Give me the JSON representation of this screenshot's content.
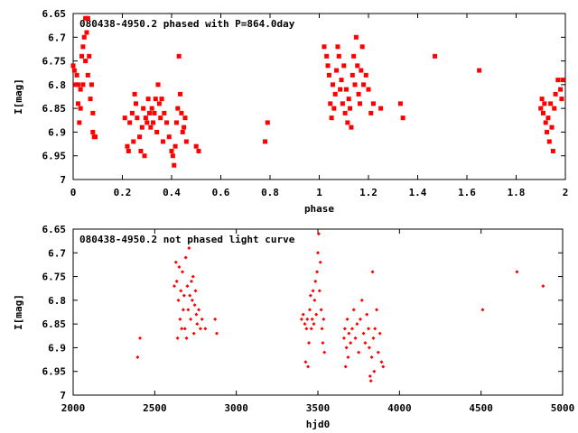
{
  "chart_data": [
    {
      "type": "scatter",
      "title": "080438-4950.2 phased with P=864.0day",
      "xlabel": "phase",
      "ylabel": "I[mag]",
      "xlim": [
        0,
        2
      ],
      "ylim": [
        7,
        6.65
      ],
      "y_inverted": true,
      "grid": false,
      "marker_color": "#ff0000",
      "x_ticks": [
        "0",
        "0.2",
        "0.4",
        "0.6",
        "0.8",
        "1",
        "1.2",
        "1.4",
        "1.6",
        "1.8",
        "2"
      ],
      "y_ticks": [
        "6.65",
        "6.7",
        "6.75",
        "6.8",
        "6.85",
        "6.9",
        "6.95",
        "7"
      ],
      "series": [
        {
          "x": [
            0.0,
            0.005,
            0.01,
            0.015,
            0.02,
            0.02,
            0.025,
            0.03,
            0.03,
            0.035,
            0.04,
            0.04,
            0.045,
            0.05,
            0.05,
            0.055,
            0.06,
            0.06,
            0.065,
            0.07,
            0.075,
            0.08,
            0.08,
            0.085,
            0.09,
            0.21,
            0.22,
            0.225,
            0.23,
            0.24,
            0.245,
            0.25,
            0.255,
            0.26,
            0.27,
            0.275,
            0.28,
            0.285,
            0.29,
            0.295,
            0.3,
            0.305,
            0.31,
            0.315,
            0.32,
            0.325,
            0.33,
            0.335,
            0.34,
            0.345,
            0.35,
            0.355,
            0.36,
            0.365,
            0.37,
            0.38,
            0.39,
            0.4,
            0.405,
            0.41,
            0.415,
            0.42,
            0.425,
            0.43,
            0.435,
            0.44,
            0.445,
            0.45,
            0.455,
            0.46,
            0.5,
            0.51,
            0.78,
            0.79,
            1.02,
            1.03,
            1.035,
            1.04,
            1.045,
            1.05,
            1.055,
            1.06,
            1.065,
            1.07,
            1.075,
            1.08,
            1.085,
            1.09,
            1.095,
            1.1,
            1.105,
            1.11,
            1.115,
            1.12,
            1.125,
            1.13,
            1.135,
            1.14,
            1.145,
            1.15,
            1.155,
            1.16,
            1.165,
            1.17,
            1.175,
            1.18,
            1.19,
            1.2,
            1.21,
            1.22,
            1.25,
            1.33,
            1.34,
            1.47,
            1.65,
            1.9,
            1.905,
            1.91,
            1.915,
            1.92,
            1.925,
            1.93,
            1.935,
            1.94,
            1.945,
            1.95,
            1.955,
            1.96,
            1.97,
            1.98,
            1.985,
            1.99
          ],
          "y": [
            6.76,
            6.77,
            6.8,
            6.78,
            6.84,
            6.8,
            6.88,
            6.85,
            6.81,
            6.74,
            6.8,
            6.72,
            6.7,
            6.66,
            6.75,
            6.69,
            6.66,
            6.78,
            6.74,
            6.83,
            6.8,
            6.9,
            6.86,
            6.91,
            6.91,
            6.87,
            6.93,
            6.94,
            6.88,
            6.86,
            6.92,
            6.82,
            6.84,
            6.87,
            6.91,
            6.94,
            6.89,
            6.85,
            6.95,
            6.87,
            6.88,
            6.83,
            6.86,
            6.89,
            6.85,
            6.88,
            6.86,
            6.83,
            6.9,
            6.8,
            6.84,
            6.87,
            6.83,
            6.92,
            6.86,
            6.88,
            6.91,
            6.94,
            6.95,
            6.97,
            6.93,
            6.88,
            6.85,
            6.74,
            6.82,
            6.86,
            6.9,
            6.89,
            6.87,
            6.92,
            6.93,
            6.94,
            6.92,
            6.88,
            6.72,
            6.74,
            6.76,
            6.78,
            6.84,
            6.87,
            6.8,
            6.85,
            6.82,
            6.77,
            6.72,
            6.74,
            6.81,
            6.79,
            6.84,
            6.76,
            6.86,
            6.81,
            6.88,
            6.83,
            6.85,
            6.89,
            6.78,
            6.74,
            6.8,
            6.7,
            6.76,
            6.82,
            6.84,
            6.77,
            6.72,
            6.8,
            6.78,
            6.81,
            6.86,
            6.84,
            6.85,
            6.84,
            6.87,
            6.74,
            6.77,
            6.85,
            6.83,
            6.86,
            6.84,
            6.88,
            6.9,
            6.87,
            6.92,
            6.84,
            6.89,
            6.94,
            6.85,
            6.82,
            6.79,
            6.81,
            6.83,
            6.79
          ]
        }
      ]
    },
    {
      "type": "scatter",
      "title": "080438-4950.2 not phased light curve",
      "xlabel": "hjd0",
      "ylabel": "I[mag]",
      "xlim": [
        2000,
        5000
      ],
      "ylim": [
        7,
        6.65
      ],
      "y_inverted": true,
      "grid": false,
      "marker_color": "#ff0000",
      "x_ticks": [
        "2000",
        "2500",
        "3000",
        "3500",
        "4000",
        "4500",
        "5000"
      ],
      "y_ticks": [
        "6.65",
        "6.7",
        "6.75",
        "6.8",
        "6.85",
        "6.9",
        "6.95",
        "7"
      ],
      "series": [
        {
          "x": [
            2395,
            2410,
            2620,
            2630,
            2635,
            2640,
            2645,
            2650,
            2655,
            2660,
            2665,
            2670,
            2675,
            2680,
            2685,
            2690,
            2695,
            2700,
            2705,
            2710,
            2715,
            2720,
            2725,
            2730,
            2735,
            2740,
            2745,
            2750,
            2755,
            2760,
            2770,
            2780,
            2790,
            2810,
            2870,
            2880,
            3400,
            3410,
            3420,
            3425,
            3430,
            3435,
            3440,
            3445,
            3450,
            3455,
            3460,
            3465,
            3470,
            3475,
            3480,
            3485,
            3490,
            3495,
            3500,
            3505,
            3510,
            3515,
            3520,
            3525,
            3530,
            3535,
            3540,
            3660,
            3665,
            3670,
            3675,
            3680,
            3685,
            3690,
            3700,
            3710,
            3720,
            3730,
            3740,
            3750,
            3760,
            3770,
            3780,
            3790,
            3800,
            3810,
            3815,
            3820,
            3825,
            3830,
            3835,
            3840,
            3845,
            3850,
            3860,
            3870,
            3880,
            3890,
            3900,
            4510,
            4720,
            4880
          ],
          "y": [
            6.92,
            6.88,
            6.77,
            6.72,
            6.76,
            6.88,
            6.8,
            6.73,
            6.84,
            6.78,
            6.86,
            6.74,
            6.82,
            6.79,
            6.86,
            6.71,
            6.88,
            6.77,
            6.82,
            6.69,
            6.79,
            6.84,
            6.76,
            6.8,
            6.75,
            6.87,
            6.81,
            6.78,
            6.83,
            6.85,
            6.82,
            6.86,
            6.84,
            6.86,
            6.84,
            6.87,
            6.84,
            6.83,
            6.85,
            6.93,
            6.86,
            6.84,
            6.94,
            6.89,
            6.82,
            6.79,
            6.86,
            6.84,
            6.78,
            6.85,
            6.8,
            6.76,
            6.83,
            6.74,
            6.7,
            6.66,
            6.78,
            6.72,
            6.82,
            6.86,
            6.89,
            6.84,
            6.91,
            6.88,
            6.86,
            6.94,
            6.9,
            6.84,
            6.92,
            6.87,
            6.89,
            6.86,
            6.82,
            6.88,
            6.85,
            6.91,
            6.84,
            6.8,
            6.87,
            6.89,
            6.83,
            6.86,
            6.9,
            6.96,
            6.97,
            6.92,
            6.74,
            6.88,
            6.95,
            6.86,
            6.82,
            6.91,
            6.87,
            6.93,
            6.94,
            6.82,
            6.74,
            6.77
          ]
        }
      ]
    }
  ]
}
